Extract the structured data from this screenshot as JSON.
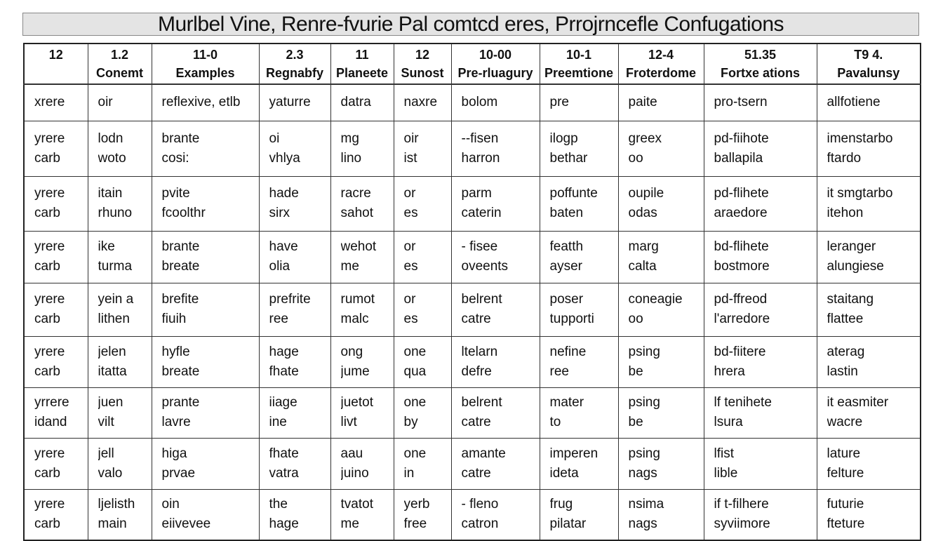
{
  "title": "Murlbel Vine, Renre-fvurie Pal comtcd eres, Prrojrncefle Confugations",
  "headers": [
    [
      "12",
      ""
    ],
    [
      "1.2",
      "Conemt"
    ],
    [
      "11-0",
      "Examples"
    ],
    [
      "2.3",
      "Regnabfy"
    ],
    [
      "11",
      "Planeete"
    ],
    [
      "12",
      "Sunost"
    ],
    [
      "10-00",
      "Pre-rluagury"
    ],
    [
      "10-1",
      "Preemtione"
    ],
    [
      "12-4",
      "Froterdome"
    ],
    [
      "51.35",
      "Fortxe ations"
    ],
    [
      "T9 4.",
      "Pavalunsy"
    ]
  ],
  "rows": [
    [
      [
        "xrere"
      ],
      [
        "oir"
      ],
      [
        "reflexive, etlb"
      ],
      [
        "yaturre"
      ],
      [
        "datra"
      ],
      [
        "naxre"
      ],
      [
        "bolom"
      ],
      [
        "pre"
      ],
      [
        "paite"
      ],
      [
        "pro-tsern"
      ],
      [
        "allfotiene"
      ]
    ],
    [
      [
        "yrere",
        "carb"
      ],
      [
        "lodn",
        "woto"
      ],
      [
        "brante",
        "cosi:"
      ],
      [
        "oi",
        "vhlya"
      ],
      [
        "mg",
        "lino"
      ],
      [
        "oir",
        "ist"
      ],
      [
        "--fisen",
        "harron"
      ],
      [
        "ilogp",
        "bethar"
      ],
      [
        "greex",
        "oo"
      ],
      [
        "pd-fiihote",
        "ballapila"
      ],
      [
        "imenstarbo",
        "ftardo"
      ]
    ],
    [
      [
        "yrere",
        "carb"
      ],
      [
        "itain",
        "rhuno"
      ],
      [
        "pvite",
        "fcoolthr"
      ],
      [
        "hade",
        "sirx"
      ],
      [
        "racre",
        "sahot"
      ],
      [
        "or",
        "es"
      ],
      [
        "parm",
        "caterin"
      ],
      [
        "poffunte",
        "baten"
      ],
      [
        "oupile",
        "odas"
      ],
      [
        "pd-flihete",
        "araedore"
      ],
      [
        "it smgtarbo",
        "itehon"
      ]
    ],
    [
      [
        "yrere",
        "carb"
      ],
      [
        "ike",
        "turma"
      ],
      [
        "brante",
        "breate"
      ],
      [
        "have",
        "olia"
      ],
      [
        "wehot",
        "me"
      ],
      [
        "or",
        "es"
      ],
      [
        "- fisee",
        "oveents"
      ],
      [
        "featth",
        "ayser"
      ],
      [
        "marg",
        "calta"
      ],
      [
        "bd-flihete",
        "bostmore"
      ],
      [
        "leranger",
        "alungiese"
      ]
    ],
    [
      [
        "yrere",
        "carb"
      ],
      [
        "yein a",
        "lithen"
      ],
      [
        "brefite",
        "fiuih"
      ],
      [
        "prefrite",
        "ree"
      ],
      [
        "rumot",
        "malc"
      ],
      [
        "or",
        "es"
      ],
      [
        "belrent",
        "catre"
      ],
      [
        "poser",
        "tupporti"
      ],
      [
        "coneagie",
        "oo"
      ],
      [
        "pd-ffreod",
        "l'arredore"
      ],
      [
        "staitang",
        "flattee"
      ]
    ],
    [
      [
        "yrere",
        "carb"
      ],
      [
        "jelen",
        "itatta"
      ],
      [
        "hyfle",
        "breate"
      ],
      [
        "hage",
        "fhate"
      ],
      [
        "ong",
        "jume"
      ],
      [
        "one",
        "qua"
      ],
      [
        "ltelarn",
        "defre"
      ],
      [
        "nefine",
        "ree"
      ],
      [
        "psing",
        "be"
      ],
      [
        "bd-fiitere",
        "hrera"
      ],
      [
        "aterag",
        "lastin"
      ]
    ],
    [
      [
        "yrrere",
        "idand"
      ],
      [
        "juen",
        "vilt"
      ],
      [
        "prante",
        "lavre"
      ],
      [
        "iiage",
        "ine"
      ],
      [
        "juetot",
        "livt"
      ],
      [
        "one",
        "by"
      ],
      [
        "belrent",
        "catre"
      ],
      [
        "mater",
        "to"
      ],
      [
        "psing",
        "be"
      ],
      [
        "lf tenihete",
        "lsura"
      ],
      [
        "it easmiter",
        "wacre"
      ]
    ],
    [
      [
        "yrere",
        "carb"
      ],
      [
        "jell",
        "valo"
      ],
      [
        "higa",
        "prvae"
      ],
      [
        "fhate",
        "vatra"
      ],
      [
        "aau",
        "juino"
      ],
      [
        "one",
        "in"
      ],
      [
        "amante",
        "catre"
      ],
      [
        "imperen",
        "ideta"
      ],
      [
        "psing",
        "nags"
      ],
      [
        "lfist",
        "lible"
      ],
      [
        "lature",
        "felture"
      ]
    ],
    [
      [
        "yrere",
        "carb"
      ],
      [
        "ljelisth",
        "main"
      ],
      [
        "oin",
        "eiivevee"
      ],
      [
        "the",
        "hage"
      ],
      [
        "tvatot",
        "me"
      ],
      [
        "yerb",
        "free"
      ],
      [
        "- fleno",
        "catron"
      ],
      [
        "frug",
        "pilatar"
      ],
      [
        "nsima",
        "nags"
      ],
      [
        "if t-filhere",
        "syviimore"
      ],
      [
        "futurie",
        "fteture"
      ]
    ]
  ]
}
